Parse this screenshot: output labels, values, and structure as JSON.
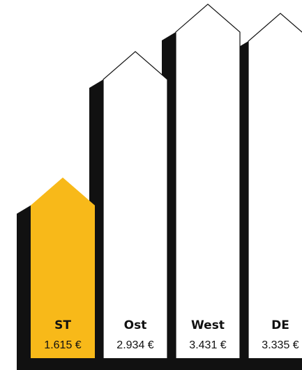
{
  "chart_data": {
    "type": "bar",
    "title": "",
    "xlabel": "",
    "ylabel": "",
    "unit": "€",
    "ylim": [
      0,
      3431
    ],
    "grid": false,
    "legend": "none",
    "categories": [
      "ST",
      "Ost",
      "West",
      "DE"
    ],
    "values": [
      1615,
      2934,
      3431,
      3335
    ],
    "value_labels": [
      "1.615 €",
      "2.934 €",
      "3.431 €",
      "3.335 €"
    ],
    "highlight_index": 0,
    "colors": {
      "highlight": "#F8B919",
      "bar": "#ffffff",
      "shadow": "#111111",
      "outline": "#111111",
      "text": "#111111"
    }
  }
}
